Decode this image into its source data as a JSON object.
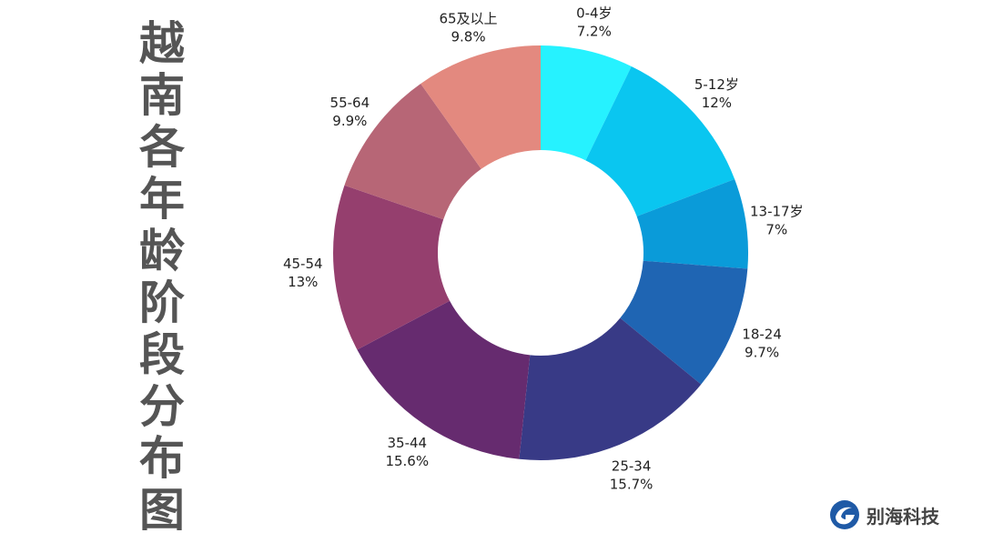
{
  "chart_data": {
    "type": "pie",
    "variant": "donut",
    "title": "越南各年龄阶段分布图",
    "categories": [
      "0-4岁",
      "5-12岁",
      "13-17岁",
      "18-24",
      "25-34",
      "35-44",
      "45-54",
      "55-64",
      "65及以上"
    ],
    "values": [
      7.2,
      12,
      7,
      9.7,
      15.7,
      15.6,
      13,
      9.9,
      9.8
    ],
    "value_labels": [
      "7.2%",
      "12%",
      "7%",
      "9.7%",
      "15.7%",
      "15.6%",
      "13%",
      "9.9%",
      "9.8%"
    ],
    "colors": [
      "#26F2FF",
      "#0AC6F0",
      "#0A9BD9",
      "#1F65B3",
      "#383A86",
      "#662B6F",
      "#953F6E",
      "#B76676",
      "#E3897F"
    ],
    "legend": "none"
  },
  "title_chars": [
    "越",
    "南",
    "各",
    "年",
    "龄",
    "阶",
    "段",
    "分",
    "布",
    "图"
  ],
  "logo": {
    "text": "别海科技",
    "icon": "g-swirl-logo-icon",
    "color": "#1F5AA6"
  }
}
